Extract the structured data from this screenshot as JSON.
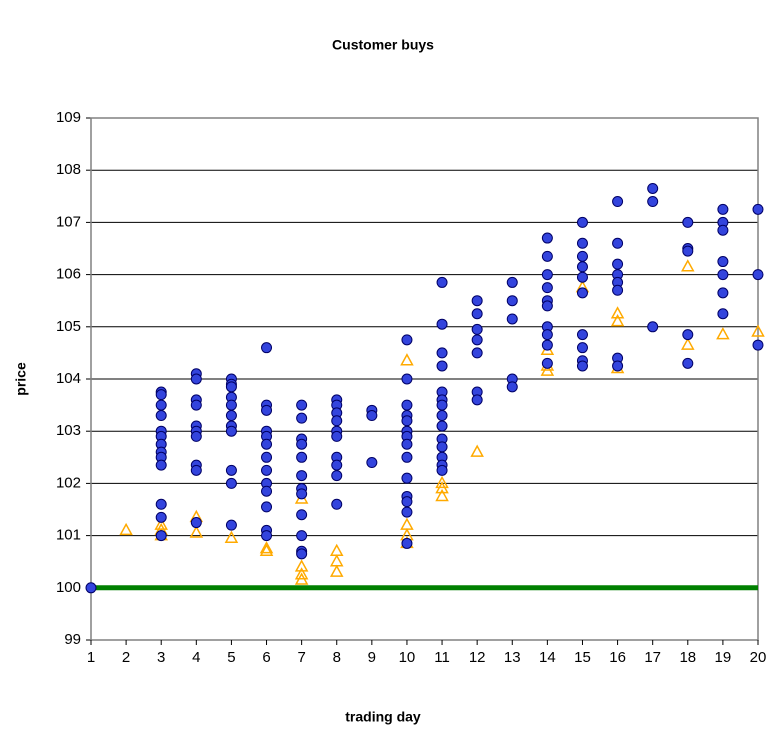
{
  "chart_data": {
    "type": "scatter",
    "title": "Customer buys",
    "x_label": "trading day",
    "y_label": "price",
    "xlim": [
      1,
      20
    ],
    "xticks": [
      1,
      2,
      3,
      4,
      5,
      6,
      7,
      8,
      9,
      10,
      11,
      12,
      13,
      14,
      15,
      16,
      17,
      18,
      19,
      20
    ],
    "ylim": [
      99,
      109
    ],
    "yticks": [
      99,
      100,
      101,
      102,
      103,
      104,
      105,
      106,
      107,
      108,
      109
    ],
    "grid": true,
    "series": [
      {
        "color": "#3344dd",
        "marker": "circle",
        "x": [
          1,
          3,
          3,
          3,
          3,
          3,
          3,
          3,
          3,
          3,
          3,
          3,
          3,
          3,
          4,
          4,
          4,
          4,
          4,
          4,
          4,
          4,
          4,
          4,
          5,
          5,
          5,
          5,
          5,
          5,
          5,
          5,
          5,
          5,
          5,
          6,
          6,
          6,
          6,
          6,
          6,
          6,
          6,
          6,
          6,
          6,
          6,
          6,
          7,
          7,
          7,
          7,
          7,
          7,
          7,
          7,
          7,
          7,
          7,
          7,
          8,
          8,
          8,
          8,
          8,
          8,
          8,
          8,
          8,
          8,
          9,
          9,
          9,
          10,
          10,
          10,
          10,
          10,
          10,
          10,
          10,
          10,
          10,
          10,
          10,
          10,
          10,
          11,
          11,
          11,
          11,
          11,
          11,
          11,
          11,
          11,
          11,
          11,
          11,
          11,
          11,
          12,
          12,
          12,
          12,
          12,
          12,
          12,
          13,
          13,
          13,
          13,
          13,
          14,
          14,
          14,
          14,
          14,
          14,
          14,
          14,
          14,
          14,
          15,
          15,
          15,
          15,
          15,
          15,
          15,
          15,
          15,
          15,
          16,
          16,
          16,
          16,
          16,
          16,
          16,
          16,
          17,
          17,
          17,
          18,
          18,
          18,
          18,
          18,
          19,
          19,
          19,
          19,
          19,
          19,
          19,
          20,
          20,
          20
        ],
        "values": [
          100,
          103.75,
          103.7,
          103.5,
          103.3,
          103.0,
          102.9,
          102.75,
          102.6,
          102.5,
          102.35,
          101.6,
          101.35,
          101.0,
          104.1,
          104.0,
          103.6,
          103.5,
          103.1,
          103.0,
          102.9,
          102.35,
          102.25,
          101.25,
          104.0,
          103.9,
          103.85,
          103.65,
          103.5,
          103.3,
          103.1,
          103.0,
          102.25,
          102.0,
          101.2,
          104.6,
          103.5,
          103.4,
          103.0,
          102.9,
          102.75,
          102.5,
          102.25,
          102.0,
          101.85,
          101.55,
          101.1,
          101.0,
          103.5,
          103.25,
          102.85,
          102.75,
          102.5,
          102.15,
          101.9,
          101.8,
          101.4,
          101.0,
          100.7,
          100.65,
          103.6,
          103.5,
          103.35,
          103.2,
          103.0,
          102.9,
          102.5,
          102.35,
          102.15,
          101.6,
          103.4,
          103.3,
          102.4,
          104.75,
          104.0,
          103.5,
          103.3,
          103.2,
          103.0,
          102.9,
          102.75,
          102.5,
          102.1,
          101.75,
          101.65,
          101.45,
          100.85,
          105.85,
          105.05,
          104.5,
          104.25,
          103.75,
          103.6,
          103.5,
          103.3,
          103.1,
          102.85,
          102.7,
          102.5,
          102.35,
          102.25,
          105.5,
          105.25,
          104.95,
          104.75,
          104.5,
          103.75,
          103.6,
          105.85,
          105.5,
          105.15,
          104.0,
          103.85,
          106.7,
          106.35,
          106.0,
          105.75,
          105.5,
          105.4,
          105.0,
          104.85,
          104.65,
          104.3,
          107.0,
          106.6,
          106.35,
          106.15,
          105.95,
          105.65,
          104.85,
          104.6,
          104.35,
          104.25,
          107.4,
          106.6,
          106.2,
          106.0,
          105.85,
          105.7,
          104.4,
          104.25,
          107.65,
          107.4,
          105.0,
          107.0,
          106.5,
          106.45,
          104.85,
          104.3,
          107.25,
          107.0,
          106.85,
          106.25,
          106.0,
          105.65,
          105.25,
          107.25,
          106.0,
          104.65
        ]
      },
      {
        "color": "#ffaa00",
        "marker": "triangle",
        "x": [
          2,
          3,
          3,
          3,
          4,
          4,
          5,
          6,
          6,
          7,
          7,
          7,
          7,
          8,
          8,
          8,
          10,
          10,
          10,
          10,
          11,
          11,
          11,
          12,
          14,
          14,
          14,
          15,
          16,
          16,
          16,
          18,
          18,
          19,
          20
        ],
        "values": [
          101.1,
          101.2,
          101.1,
          101.0,
          101.35,
          101.05,
          100.95,
          100.75,
          100.7,
          100.4,
          100.25,
          100.15,
          101.7,
          100.7,
          100.5,
          100.3,
          104.35,
          101.2,
          101.0,
          100.85,
          102.0,
          101.9,
          101.75,
          102.6,
          104.55,
          104.25,
          104.15,
          105.75,
          105.25,
          105.1,
          104.2,
          106.15,
          104.65,
          104.85,
          104.9
        ]
      },
      {
        "color": "#008000",
        "marker": "line",
        "x": [
          1,
          20
        ],
        "values": [
          100,
          100
        ]
      }
    ]
  }
}
